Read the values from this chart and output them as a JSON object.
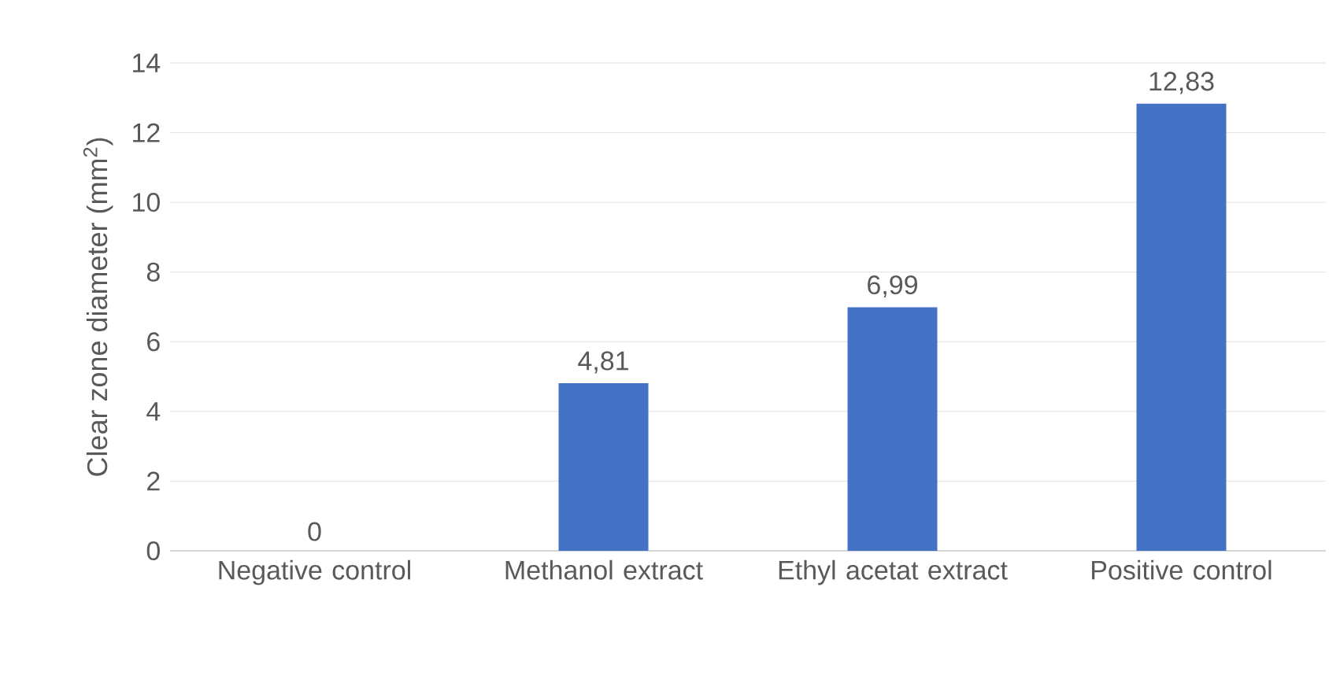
{
  "chart_data": {
    "type": "bar",
    "categories": [
      "Negative control",
      "Methanol extract",
      "Ethyl acetat extract",
      "Positive control"
    ],
    "values": [
      0,
      4.81,
      6.99,
      12.83
    ],
    "value_labels": [
      "0",
      "4,81",
      "6,99",
      "12,83"
    ],
    "color": "#4472c4",
    "ylabel": "Clear zone diameter (mm$^{2}$)",
    "ylim": [
      0,
      14
    ],
    "yticks": [
      0,
      2,
      4,
      6,
      8,
      10,
      12,
      14
    ],
    "grid": "y"
  }
}
